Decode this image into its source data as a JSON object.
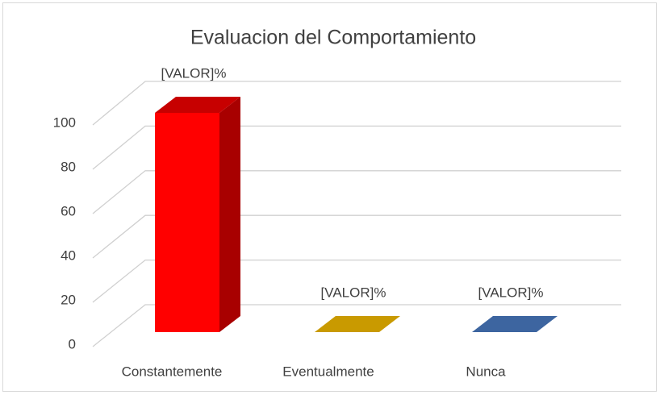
{
  "chart_data": {
    "type": "bar3d",
    "title": "Evaluacion del Comportamiento",
    "categories": [
      "Constantemente",
      "Eventualmente",
      "Nunca"
    ],
    "values": [
      100,
      0,
      0
    ],
    "value_labels": [
      "[VALOR]%",
      "[VALOR]%",
      "[VALOR]%"
    ],
    "colors": [
      "#ff0000",
      "#c99a00",
      "#3d65a0"
    ],
    "ylim": [
      0,
      100
    ],
    "yticks": [
      0,
      20,
      40,
      60,
      80,
      100
    ],
    "grid": true
  }
}
